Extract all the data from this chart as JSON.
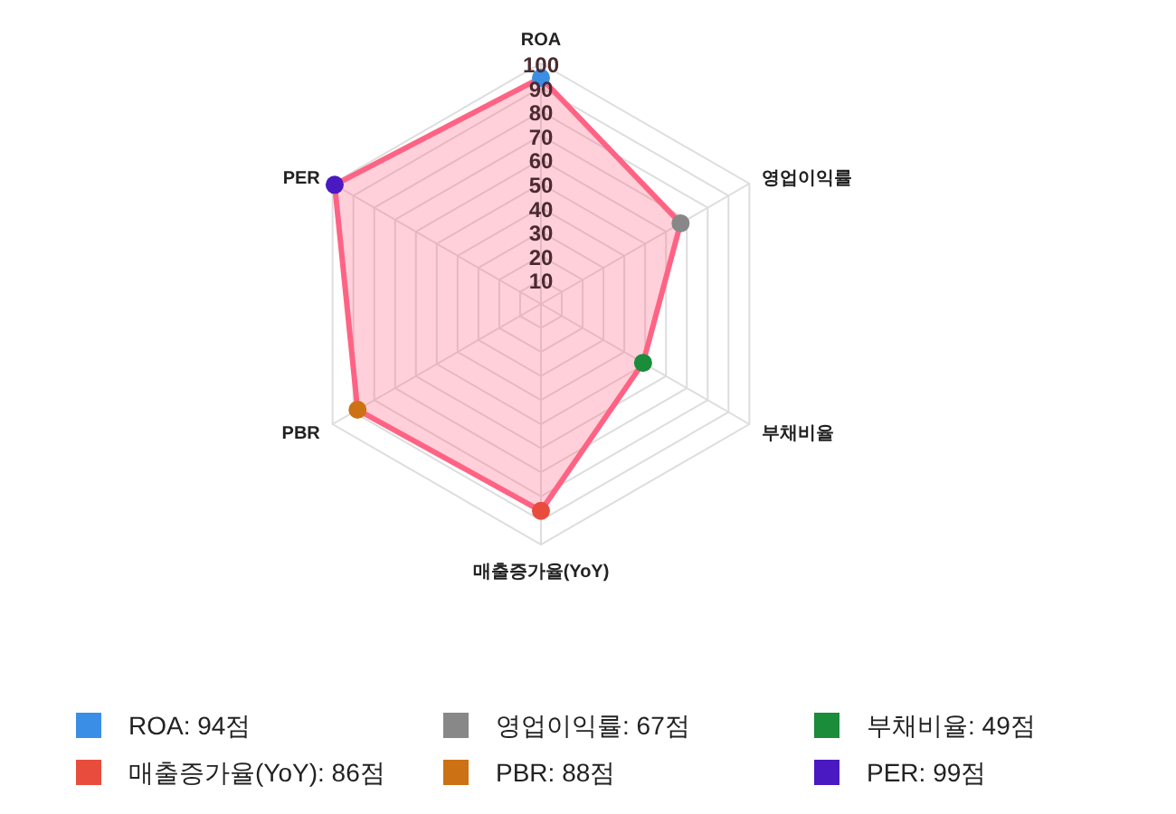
{
  "chart_data": {
    "type": "radar",
    "categories": [
      "ROA",
      "영업이익률",
      "부채비율",
      "매출증가율(YoY)",
      "PBR",
      "PER"
    ],
    "series": [
      {
        "color": "#ff6384",
        "values": [
          94,
          67,
          49,
          86,
          88,
          99
        ],
        "colors": [
          "#3a8ee6",
          "#888888",
          "#1a8c3a",
          "#e84c3d",
          "#cc7214",
          "#4b19c2"
        ]
      }
    ],
    "annotations": [
      "ROA: 94점",
      "영업이익률: 67점",
      "부채비율: 49점",
      "매출증가율(YoY): 86점",
      "PBR: 88점",
      "PER: 99점"
    ],
    "ylim": [
      0,
      100
    ],
    "yticks": [
      10,
      20,
      30,
      40,
      50,
      60,
      70,
      80,
      90,
      100
    ],
    "grid": true,
    "marker": "circle"
  }
}
